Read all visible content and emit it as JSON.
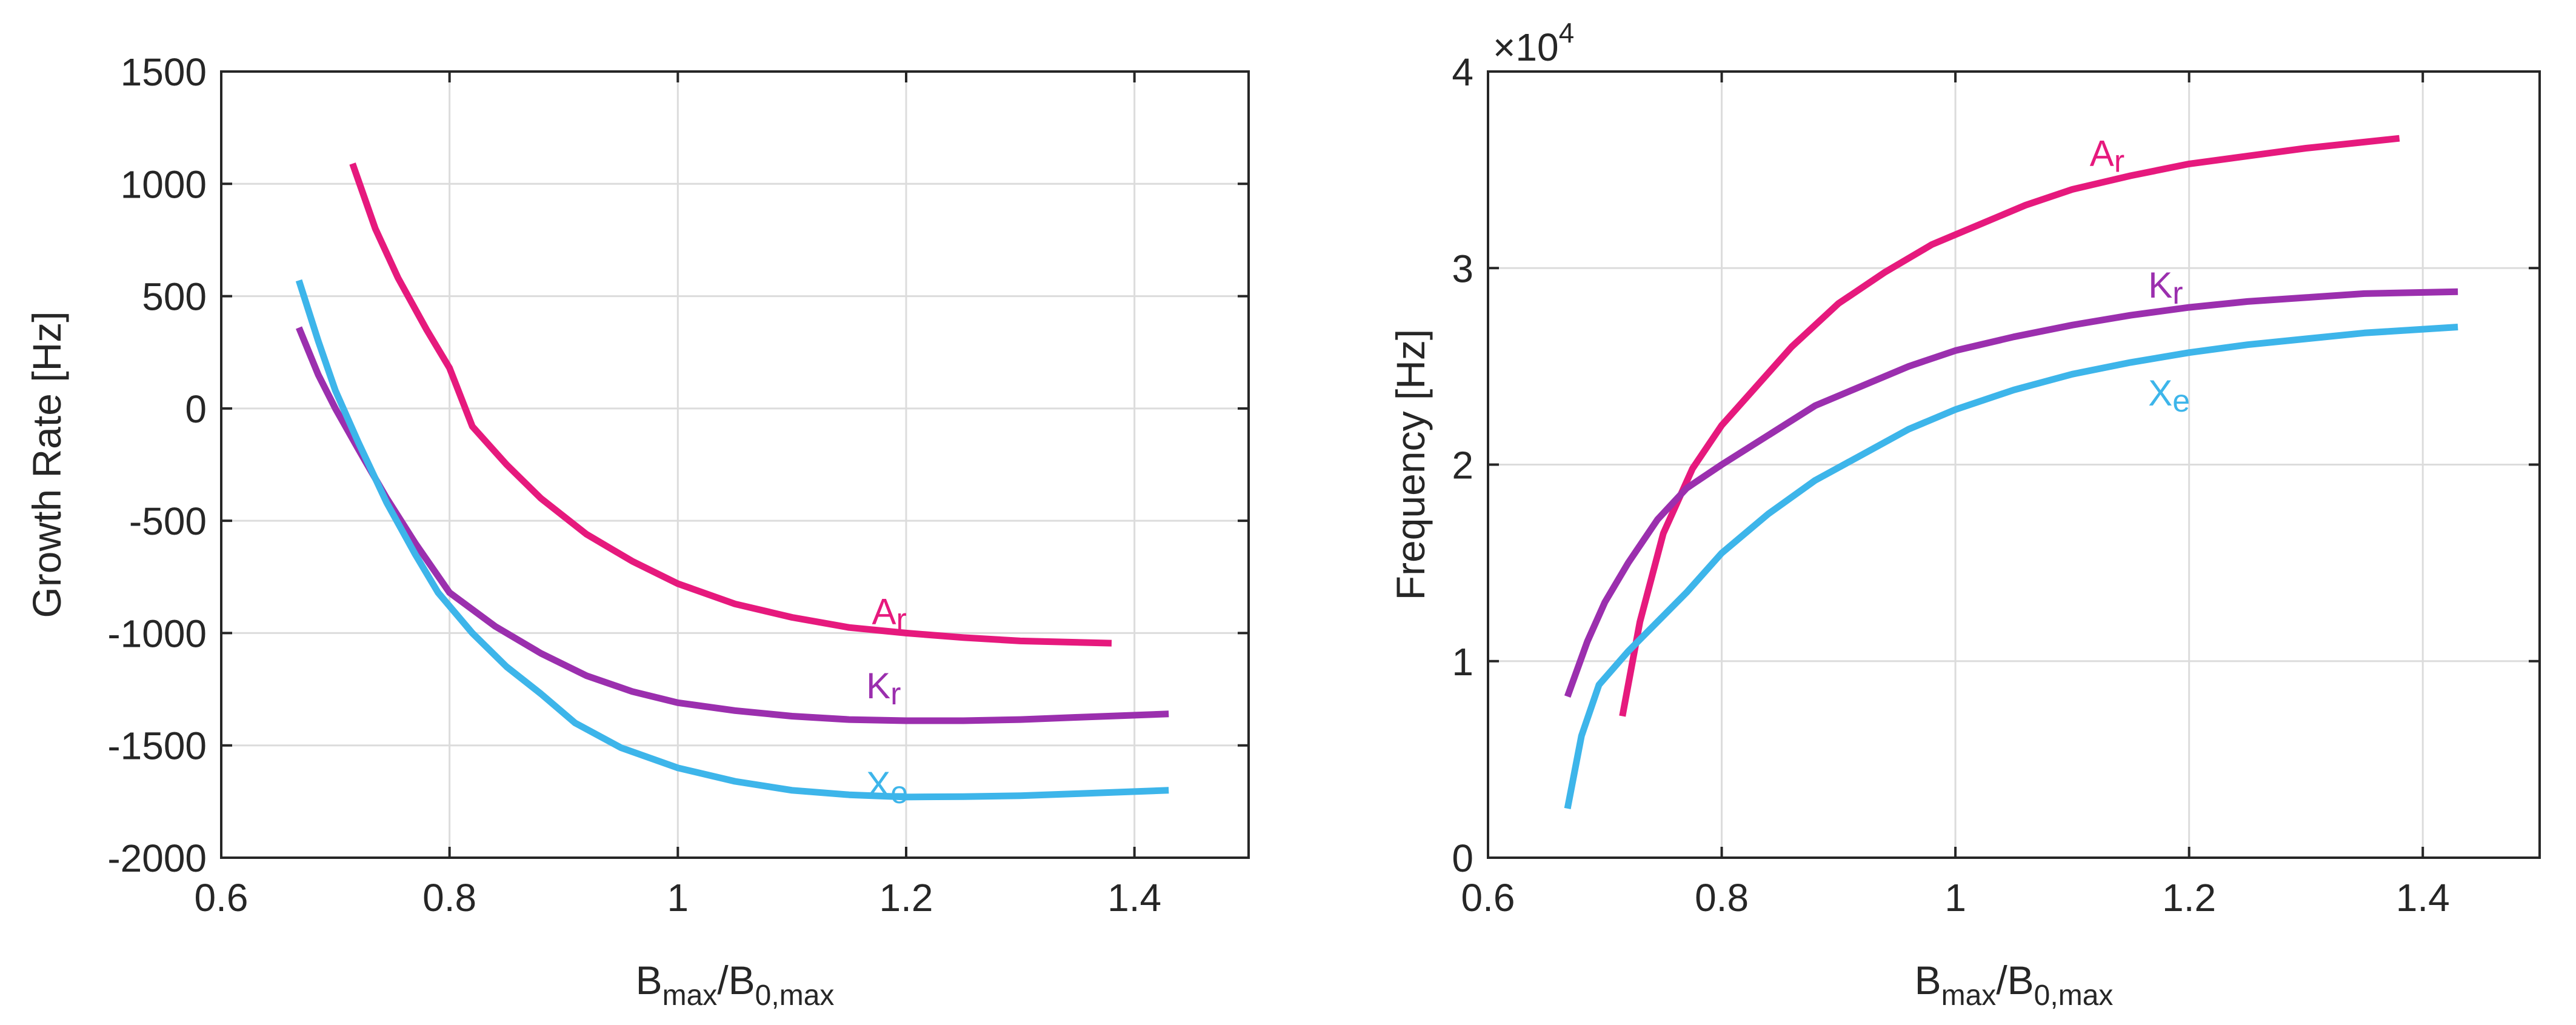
{
  "chart_data": [
    {
      "type": "line",
      "title": "",
      "xlabel": {
        "base": "B",
        "sub1": "max",
        "sep": "/B",
        "sub2": "0,max"
      },
      "ylabel": "Growth Rate [Hz]",
      "xlim": [
        0.6,
        1.5
      ],
      "ylim": [
        -2000,
        1500
      ],
      "xticks": [
        0.6,
        0.8,
        1.0,
        1.2,
        1.4
      ],
      "xtick_labels": [
        "0.6",
        "0.8",
        "1",
        "1.2",
        "1.4"
      ],
      "yticks": [
        -2000,
        -1500,
        -1000,
        -500,
        0,
        500,
        1000,
        1500
      ],
      "ytick_labels": [
        "-2000",
        "-1500",
        "-1000",
        "-500",
        "0",
        "500",
        "1000",
        "1500"
      ],
      "grid": true,
      "series": [
        {
          "name": "Ar",
          "label_base": "A",
          "label_sub": "r",
          "color": "#e6197d",
          "label_at": [
            1.17,
            -960
          ],
          "x": [
            0.715,
            0.735,
            0.755,
            0.78,
            0.8,
            0.82,
            0.85,
            0.88,
            0.92,
            0.96,
            1.0,
            1.05,
            1.1,
            1.15,
            1.2,
            1.25,
            1.3,
            1.38
          ],
          "y": [
            1090,
            800,
            580,
            350,
            180,
            -80,
            -250,
            -400,
            -560,
            -680,
            -780,
            -870,
            -930,
            -975,
            -1000,
            -1020,
            -1035,
            -1045
          ]
        },
        {
          "name": "Kr",
          "label_base": "K",
          "label_sub": "r",
          "color": "#9b2fae",
          "label_at": [
            1.165,
            -1290
          ],
          "x": [
            0.668,
            0.685,
            0.7,
            0.72,
            0.745,
            0.77,
            0.8,
            0.84,
            0.88,
            0.92,
            0.96,
            1.0,
            1.05,
            1.1,
            1.15,
            1.2,
            1.25,
            1.3,
            1.35,
            1.43
          ],
          "y": [
            360,
            150,
            0,
            -180,
            -400,
            -600,
            -820,
            -970,
            -1090,
            -1190,
            -1260,
            -1310,
            -1345,
            -1370,
            -1385,
            -1390,
            -1390,
            -1385,
            -1375,
            -1360
          ]
        },
        {
          "name": "Xe",
          "label_base": "X",
          "label_sub": "e",
          "color": "#3db5ea",
          "label_at": [
            1.165,
            -1730
          ],
          "x": [
            0.668,
            0.685,
            0.7,
            0.72,
            0.745,
            0.77,
            0.79,
            0.82,
            0.85,
            0.88,
            0.91,
            0.95,
            1.0,
            1.05,
            1.1,
            1.15,
            1.2,
            1.25,
            1.3,
            1.35,
            1.43
          ],
          "y": [
            570,
            300,
            80,
            -150,
            -420,
            -650,
            -820,
            -1000,
            -1150,
            -1270,
            -1400,
            -1510,
            -1600,
            -1660,
            -1700,
            -1720,
            -1730,
            -1728,
            -1724,
            -1715,
            -1700
          ]
        }
      ]
    },
    {
      "type": "line",
      "title": "",
      "xlabel": {
        "base": "B",
        "sub1": "max",
        "sep": "/B",
        "sub2": "0,max"
      },
      "ylabel": "Frequency [Hz]",
      "yexponent": {
        "prefix": "×10",
        "power": "4"
      },
      "xlim": [
        0.6,
        1.5
      ],
      "ylim": [
        0,
        4
      ],
      "xticks": [
        0.6,
        0.8,
        1.0,
        1.2,
        1.4
      ],
      "xtick_labels": [
        "0.6",
        "0.8",
        "1",
        "1.2",
        "1.4"
      ],
      "yticks": [
        0,
        1,
        2,
        3,
        4
      ],
      "ytick_labels": [
        "0",
        "1",
        "2",
        "3",
        "4"
      ],
      "grid": true,
      "series": [
        {
          "name": "Ar",
          "label_base": "A",
          "label_sub": "r",
          "color": "#e6197d",
          "label_at": [
            1.115,
            3.52
          ],
          "x": [
            0.715,
            0.73,
            0.75,
            0.775,
            0.8,
            0.83,
            0.86,
            0.9,
            0.94,
            0.98,
            1.02,
            1.06,
            1.1,
            1.15,
            1.2,
            1.25,
            1.3,
            1.38
          ],
          "y": [
            0.72,
            1.2,
            1.65,
            1.98,
            2.2,
            2.4,
            2.6,
            2.82,
            2.98,
            3.12,
            3.22,
            3.32,
            3.4,
            3.47,
            3.53,
            3.57,
            3.61,
            3.66
          ]
        },
        {
          "name": "Kr",
          "label_base": "K",
          "label_sub": "r",
          "color": "#9b2fae",
          "label_at": [
            1.165,
            2.85
          ],
          "x": [
            0.668,
            0.685,
            0.7,
            0.72,
            0.745,
            0.77,
            0.8,
            0.84,
            0.88,
            0.92,
            0.96,
            1.0,
            1.05,
            1.1,
            1.15,
            1.2,
            1.25,
            1.3,
            1.35,
            1.43
          ],
          "y": [
            0.82,
            1.1,
            1.3,
            1.5,
            1.72,
            1.88,
            2.0,
            2.15,
            2.3,
            2.4,
            2.5,
            2.58,
            2.65,
            2.71,
            2.76,
            2.8,
            2.83,
            2.85,
            2.87,
            2.88
          ]
        },
        {
          "name": "Xe",
          "label_base": "X",
          "label_sub": "e",
          "color": "#3db5ea",
          "label_at": [
            1.165,
            2.3
          ],
          "x": [
            0.668,
            0.68,
            0.695,
            0.72,
            0.745,
            0.77,
            0.8,
            0.84,
            0.88,
            0.92,
            0.96,
            1.0,
            1.05,
            1.1,
            1.15,
            1.2,
            1.25,
            1.3,
            1.35,
            1.43
          ],
          "y": [
            0.25,
            0.62,
            0.88,
            1.05,
            1.2,
            1.35,
            1.55,
            1.75,
            1.92,
            2.05,
            2.18,
            2.28,
            2.38,
            2.46,
            2.52,
            2.57,
            2.61,
            2.64,
            2.67,
            2.7
          ]
        }
      ]
    }
  ]
}
